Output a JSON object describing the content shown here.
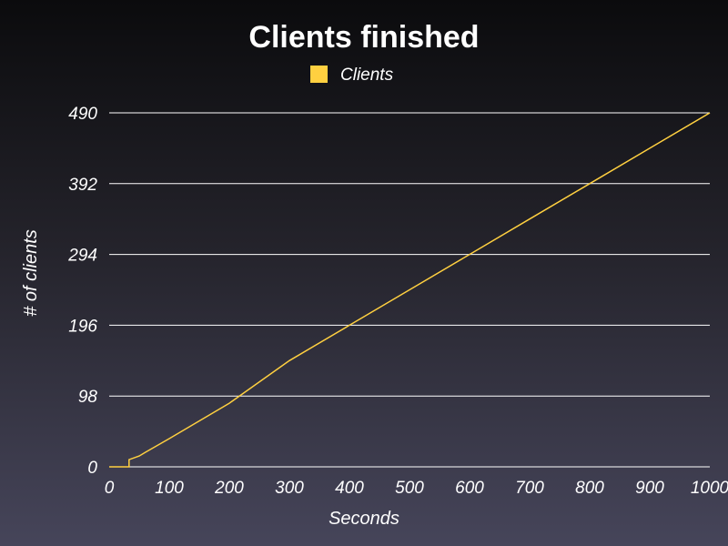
{
  "chart_data": {
    "type": "line",
    "title": "Clients finished",
    "xlabel": "Seconds",
    "ylabel": "# of clients",
    "xlim": [
      0,
      1000
    ],
    "ylim": [
      0,
      490
    ],
    "x_ticks": [
      0,
      100,
      200,
      300,
      400,
      500,
      600,
      700,
      800,
      900,
      1000
    ],
    "y_ticks": [
      0,
      98,
      196,
      294,
      392,
      490
    ],
    "grid": "horizontal",
    "legend_position": "top-center",
    "series": [
      {
        "name": "Clients",
        "color": "#ffd040",
        "x": [
          0,
          33,
          33,
          50,
          60,
          100,
          200,
          300,
          400,
          500,
          600,
          700,
          800,
          900,
          1000
        ],
        "y": [
          0,
          0,
          10,
          15,
          20,
          39,
          88,
          147,
          196,
          245,
          294,
          343,
          392,
          441,
          490
        ]
      }
    ]
  }
}
